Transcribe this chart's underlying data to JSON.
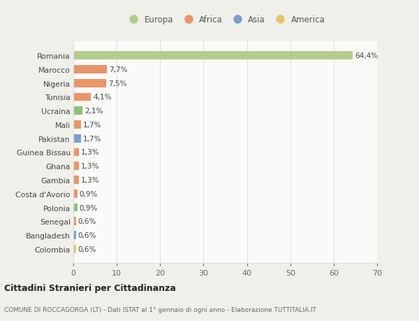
{
  "categories": [
    "Colombia",
    "Bangladesh",
    "Senegal",
    "Polonia",
    "Costa d'Avorio",
    "Gambia",
    "Ghana",
    "Guinea Bissau",
    "Pakistan",
    "Mali",
    "Ucraina",
    "Tunisia",
    "Nigeria",
    "Marocco",
    "Romania"
  ],
  "values": [
    0.6,
    0.6,
    0.6,
    0.9,
    0.9,
    1.3,
    1.3,
    1.3,
    1.7,
    1.7,
    2.1,
    4.1,
    7.5,
    7.7,
    64.4
  ],
  "labels": [
    "0,6%",
    "0,6%",
    "0,6%",
    "0,9%",
    "0,9%",
    "1,3%",
    "1,3%",
    "1,3%",
    "1,7%",
    "1,7%",
    "2,1%",
    "4,1%",
    "7,5%",
    "7,7%",
    "64,4%"
  ],
  "colors": [
    "#e8c46a",
    "#7a9ecc",
    "#e8956a",
    "#8ec07a",
    "#e8956a",
    "#e8956a",
    "#e8956a",
    "#e8956a",
    "#7a9ecc",
    "#e8956a",
    "#8ec07a",
    "#e8956a",
    "#e8956a",
    "#e8956a",
    "#b5cc8e"
  ],
  "legend_labels": [
    "Europa",
    "Africa",
    "Asia",
    "America"
  ],
  "legend_colors": [
    "#b5cc8e",
    "#e8956a",
    "#7a9ecc",
    "#e8c46a"
  ],
  "title": "Cittadini Stranieri per Cittadinanza",
  "subtitle": "COMUNE DI ROCCAGORGA (LT) - Dati ISTAT al 1° gennaio di ogni anno - Elaborazione TUTTITALIA.IT",
  "xlim": [
    0,
    70
  ],
  "xticks": [
    0,
    10,
    20,
    30,
    40,
    50,
    60,
    70
  ],
  "bg_color": "#f0f0ea",
  "bar_bg_color": "#fafaf8",
  "grid_color": "#dddddd"
}
